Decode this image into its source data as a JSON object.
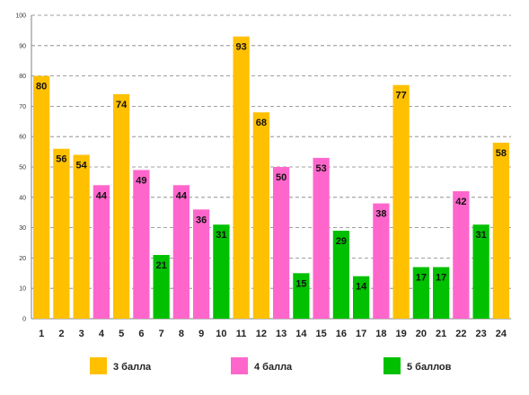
{
  "chart_data": {
    "type": "bar",
    "categories": [
      "1",
      "2",
      "3",
      "4",
      "5",
      "6",
      "7",
      "8",
      "9",
      "10",
      "11",
      "12",
      "13",
      "14",
      "15",
      "16",
      "17",
      "18",
      "19",
      "20",
      "21",
      "22",
      "23",
      "24"
    ],
    "values": [
      80,
      56,
      54,
      44,
      74,
      49,
      21,
      44,
      36,
      31,
      93,
      68,
      50,
      15,
      53,
      29,
      14,
      38,
      77,
      17,
      17,
      42,
      31,
      58
    ],
    "bar_group": [
      0,
      0,
      0,
      1,
      0,
      1,
      2,
      1,
      1,
      2,
      0,
      0,
      1,
      2,
      1,
      2,
      2,
      1,
      0,
      2,
      2,
      1,
      2,
      0
    ],
    "legend": [
      {
        "name": "3 балла",
        "color": "#FFC000"
      },
      {
        "name": "4 балла",
        "color": "#FF66CC"
      },
      {
        "name": "5 баллов",
        "color": "#00C000"
      }
    ],
    "ylim": [
      0,
      100
    ],
    "yticks": [
      0,
      10,
      20,
      30,
      40,
      50,
      60,
      70,
      80,
      90,
      100
    ],
    "grid": "dashed horizontal",
    "legend_position": "bottom",
    "title": "",
    "xlabel": "",
    "ylabel": ""
  }
}
